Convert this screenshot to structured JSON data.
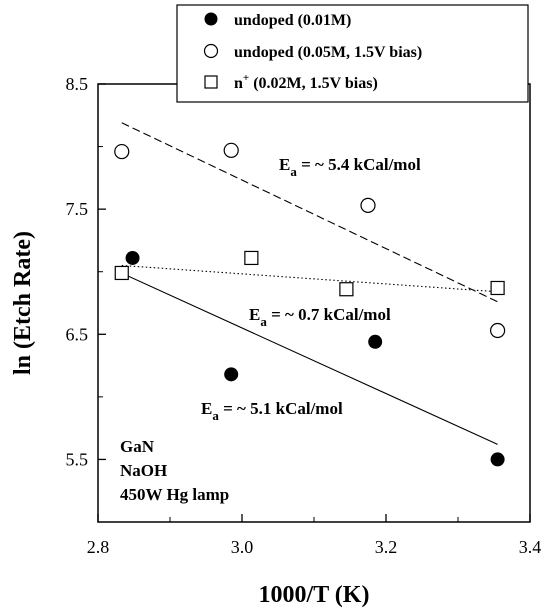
{
  "chart_data": {
    "type": "scatter",
    "xlabel": "1000/T (K)",
    "ylabel": "ln (Etch Rate)",
    "xlim": [
      2.8,
      3.4
    ],
    "ylim": [
      5.0,
      8.5
    ],
    "xticks": [
      2.8,
      3.0,
      3.2,
      3.4
    ],
    "xtick_labels": [
      "2.8",
      "3.0",
      "3.2",
      "3.4"
    ],
    "yticks": [
      5.5,
      6.5,
      7.5,
      8.5
    ],
    "ytick_labels": [
      "5.5",
      "6.5",
      "7.5",
      "8.5"
    ],
    "grid": false,
    "legend_position": "top-right",
    "series": [
      {
        "name": "undoped (0.01M)",
        "marker": "filled-circle",
        "color": "#000000",
        "points": [
          [
            2.848,
            7.11
          ],
          [
            2.985,
            6.18
          ],
          [
            3.185,
            6.44
          ],
          [
            3.355,
            5.5
          ]
        ],
        "fit": {
          "style": "solid",
          "x": [
            2.84,
            3.355
          ],
          "y": [
            6.97,
            5.62
          ]
        }
      },
      {
        "name": "undoped (0.05M, 1.5V bias)",
        "marker": "open-circle",
        "color": "#000000",
        "points": [
          [
            2.833,
            7.96
          ],
          [
            2.985,
            7.97
          ],
          [
            3.175,
            7.53
          ],
          [
            3.355,
            6.53
          ]
        ],
        "fit": {
          "style": "dashed",
          "x": [
            2.833,
            3.355
          ],
          "y": [
            8.19,
            6.76
          ]
        }
      },
      {
        "name": "n+ (0.02M, 1.5V bias)",
        "marker": "open-square",
        "color": "#000000",
        "points": [
          [
            2.833,
            6.99
          ],
          [
            3.013,
            7.11
          ],
          [
            3.145,
            6.86
          ],
          [
            3.355,
            6.87
          ]
        ],
        "fit": {
          "style": "dotted",
          "x": [
            2.833,
            3.355
          ],
          "y": [
            7.05,
            6.84
          ]
        }
      }
    ],
    "legend": [
      {
        "marker": "filled-circle",
        "label": "undoped (0.01M)"
      },
      {
        "marker": "open-circle",
        "label": "undoped (0.05M, 1.5V bias)"
      },
      {
        "marker": "open-square",
        "label": "n",
        "sup": "+",
        "rest": " (0.02M, 1.5V bias)"
      }
    ],
    "annotations": [
      {
        "main": "E",
        "sub": "a",
        "text": " = ~ 5.4 kCal/mol"
      },
      {
        "main": "E",
        "sub": "a",
        "text": " = ~ 0.7 kCal/mol"
      },
      {
        "main": "E",
        "sub": "a",
        "text": " = ~ 5.1 kCal/mol"
      }
    ],
    "note_lines": [
      "GaN",
      "NaOH",
      "450W Hg lamp"
    ]
  }
}
